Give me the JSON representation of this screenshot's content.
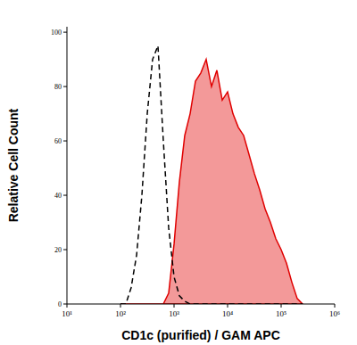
{
  "chart_data": {
    "type": "line",
    "x_label": "CD1c (purified) / GAM APC",
    "y_label": "Relative Cell Count",
    "log": "x",
    "xlim": [
      10,
      1000000
    ],
    "xticks": [
      {
        "value": 10,
        "label": "10¹"
      },
      {
        "value": 100,
        "label": "10²"
      },
      {
        "value": 1000,
        "label": "10³"
      },
      {
        "value": 10000,
        "label": "10⁴"
      },
      {
        "value": 100000,
        "label": "10⁵"
      },
      {
        "value": 1000000,
        "label": "10⁶"
      }
    ],
    "ylim": [
      0,
      102
    ],
    "yticks": [
      0,
      20,
      40,
      60,
      80,
      100
    ],
    "x": [
      100,
      126,
      158,
      200,
      251,
      316,
      398,
      501,
      631,
      794,
      1000,
      1259,
      1585,
      1995,
      2512,
      3162,
      3981,
      5012,
      6310,
      7943,
      10000,
      12589,
      15849,
      19953,
      25119,
      31623,
      39811,
      50119,
      63096,
      79433,
      100000,
      125893,
      158489,
      199526,
      251189
    ],
    "series": [
      {
        "color": "#000000",
        "line_style": "dashed",
        "type": "line",
        "values": [
          0,
          0,
          6,
          18,
          40,
          70,
          90,
          95,
          60,
          28,
          10,
          3,
          1,
          0,
          0,
          0,
          0,
          0,
          0,
          0,
          0,
          0,
          0,
          0,
          0,
          0,
          0,
          0,
          0,
          0,
          0,
          0,
          0,
          0,
          0
        ]
      },
      {
        "color": "#e00000",
        "line_style": "solid",
        "type": "area",
        "values": [
          0,
          0,
          0,
          0,
          0,
          0,
          0,
          0,
          0,
          4,
          22,
          45,
          62,
          70,
          82,
          85,
          90,
          80,
          86,
          75,
          78,
          70,
          65,
          62,
          55,
          48,
          42,
          35,
          30,
          24,
          20,
          15,
          8,
          2,
          0
        ]
      }
    ]
  }
}
